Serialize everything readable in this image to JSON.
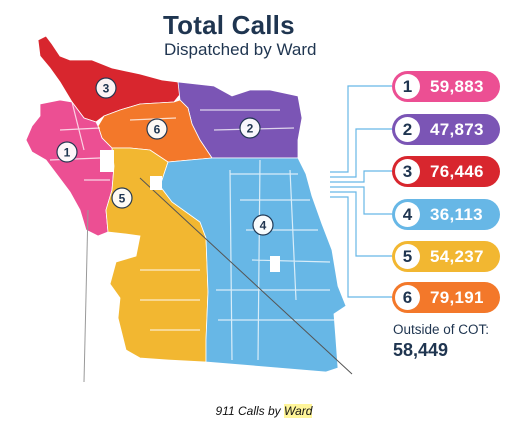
{
  "title": "Total Calls",
  "subtitle": "Dispatched by Ward",
  "colors": {
    "ward_1": "#ec4f93",
    "ward_2": "#7b55b5",
    "ward_3": "#d8262e",
    "ward_4": "#67b7e6",
    "ward_5": "#f2b731",
    "ward_6": "#f3782a",
    "text_dark": "#1f3550",
    "leader_line": "#67b7e6"
  },
  "wards": [
    {
      "number": "1",
      "calls": "59,883",
      "color": "#ec4f93"
    },
    {
      "number": "2",
      "calls": "47,873",
      "color": "#7b55b5"
    },
    {
      "number": "3",
      "calls": "76,446",
      "color": "#d8262e"
    },
    {
      "number": "4",
      "calls": "36,113",
      "color": "#67b7e6"
    },
    {
      "number": "5",
      "calls": "54,237",
      "color": "#f2b731"
    },
    {
      "number": "6",
      "calls": "79,191",
      "color": "#f3782a"
    }
  ],
  "map_labels": [
    "3",
    "6",
    "2",
    "1",
    "5",
    "4"
  ],
  "outside": {
    "label": "Outside of COT:",
    "value": "58,449"
  },
  "caption": {
    "prefix": "911 Calls by ",
    "highlight": "Ward"
  }
}
